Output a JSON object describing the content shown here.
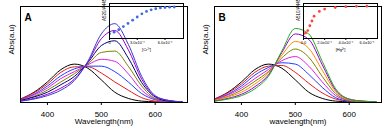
{
  "chart_data": [
    {
      "type": "line",
      "title": "A",
      "x_label": "Wavelength(nm)",
      "y_label": "Abs(a.u)",
      "x": [
        350,
        375,
        400,
        425,
        450,
        475,
        500,
        525,
        550,
        575,
        600,
        625,
        650
      ],
      "xlim": [
        350,
        660
      ],
      "xticks": [
        400,
        500,
        600
      ],
      "ylim": [
        0,
        1.4
      ],
      "tick_labels": "x",
      "grid": false,
      "series": [
        {
          "color": "#000000",
          "values": [
            0.05,
            0.15,
            0.3,
            0.48,
            0.56,
            0.5,
            0.33,
            0.15,
            0.06,
            0.02,
            0.01,
            0.0,
            0.0
          ]
        },
        {
          "color": "#e41a1c",
          "values": [
            0.05,
            0.14,
            0.27,
            0.44,
            0.52,
            0.52,
            0.43,
            0.3,
            0.18,
            0.07,
            0.02,
            0.0,
            0.0
          ]
        },
        {
          "color": "#1f3fff",
          "values": [
            0.04,
            0.12,
            0.24,
            0.39,
            0.49,
            0.53,
            0.53,
            0.45,
            0.3,
            0.13,
            0.04,
            0.01,
            0.0
          ]
        },
        {
          "color": "#e020e0",
          "values": [
            0.04,
            0.11,
            0.21,
            0.35,
            0.45,
            0.55,
            0.63,
            0.6,
            0.42,
            0.18,
            0.05,
            0.01,
            0.0
          ]
        },
        {
          "color": "#808000",
          "values": [
            0.03,
            0.09,
            0.18,
            0.3,
            0.42,
            0.56,
            0.73,
            0.75,
            0.53,
            0.24,
            0.06,
            0.02,
            0.01
          ]
        },
        {
          "color": "#000080",
          "values": [
            0.03,
            0.08,
            0.15,
            0.26,
            0.38,
            0.58,
            0.83,
            0.9,
            0.65,
            0.29,
            0.08,
            0.02,
            0.01
          ]
        },
        {
          "color": "#9400d3",
          "values": [
            0.02,
            0.06,
            0.12,
            0.21,
            0.34,
            0.59,
            0.93,
            1.05,
            0.77,
            0.34,
            0.09,
            0.03,
            0.01
          ]
        },
        {
          "color": "#3a3acc",
          "values": [
            0.02,
            0.05,
            0.1,
            0.18,
            0.32,
            0.6,
            1.0,
            1.15,
            0.85,
            0.38,
            0.1,
            0.03,
            0.01
          ]
        }
      ]
    },
    {
      "type": "scatter",
      "x_label": "[Cr³⁺]",
      "y_label": "A520/A445",
      "x": [
        0,
        5e-05,
        0.0001,
        0.00015,
        0.0002,
        0.00025,
        0.0003,
        0.00035,
        0.0004,
        0.00045,
        0.0005,
        0.00055,
        0.0006,
        0.00065,
        0.0007
      ],
      "values": [
        0.3,
        0.4,
        0.55,
        0.75,
        0.95,
        1.15,
        1.35,
        1.55,
        1.7,
        1.8,
        1.87,
        1.92,
        1.95,
        1.97,
        1.98
      ],
      "color": "#4169e1",
      "marker": "circle",
      "xlim": [
        0,
        0.0008
      ],
      "xticks": [
        0,
        {
          "value": 0.0003,
          "label": "3.0x10⁻⁴"
        },
        {
          "value": 0.0006,
          "label": "6.0x10⁻⁴"
        }
      ],
      "ylim": [
        0,
        2.2
      ],
      "tick_labels": "x"
    },
    {
      "type": "line",
      "title": "B",
      "x_label": "wavelength(nm)",
      "y_label": "Abs(a.u)",
      "x": [
        350,
        375,
        400,
        425,
        450,
        475,
        500,
        525,
        550,
        575,
        600,
        625,
        650
      ],
      "xlim": [
        350,
        660
      ],
      "xticks": [
        400,
        500,
        600
      ],
      "ylim": [
        0,
        1.4
      ],
      "tick_labels": "x",
      "grid": false,
      "series": [
        {
          "color": "#000000",
          "values": [
            0.05,
            0.15,
            0.3,
            0.48,
            0.56,
            0.5,
            0.33,
            0.15,
            0.06,
            0.02,
            0.01,
            0.0,
            0.0
          ]
        },
        {
          "color": "#e41a1c",
          "values": [
            0.05,
            0.14,
            0.27,
            0.44,
            0.53,
            0.54,
            0.44,
            0.28,
            0.14,
            0.05,
            0.02,
            0.0,
            0.0
          ]
        },
        {
          "color": "#1f3fff",
          "values": [
            0.04,
            0.12,
            0.24,
            0.4,
            0.51,
            0.58,
            0.56,
            0.41,
            0.22,
            0.07,
            0.02,
            0.01,
            0.0
          ]
        },
        {
          "color": "#e020e0",
          "values": [
            0.04,
            0.11,
            0.21,
            0.35,
            0.48,
            0.61,
            0.67,
            0.53,
            0.3,
            0.1,
            0.03,
            0.01,
            0.0
          ]
        },
        {
          "color": "#808000",
          "values": [
            0.03,
            0.09,
            0.18,
            0.31,
            0.45,
            0.65,
            0.78,
            0.66,
            0.38,
            0.13,
            0.03,
            0.01,
            0.01
          ]
        },
        {
          "color": "#ff8c00",
          "values": [
            0.03,
            0.08,
            0.15,
            0.27,
            0.43,
            0.69,
            0.89,
            0.79,
            0.47,
            0.16,
            0.04,
            0.02,
            0.01
          ]
        },
        {
          "color": "#9400d3",
          "values": [
            0.02,
            0.06,
            0.12,
            0.23,
            0.4,
            0.73,
            1.0,
            0.92,
            0.55,
            0.18,
            0.05,
            0.02,
            0.01
          ]
        },
        {
          "color": "#22aa22",
          "values": [
            0.02,
            0.05,
            0.1,
            0.2,
            0.38,
            0.75,
            1.08,
            1.0,
            0.6,
            0.2,
            0.05,
            0.02,
            0.01
          ]
        }
      ]
    },
    {
      "type": "scatter",
      "x_label": "[Hg²⁺]",
      "y_label": "A510/A445",
      "x": [
        0,
        2e-05,
        4e-05,
        6e-05,
        8e-05,
        0.0001,
        0.00015,
        0.0002,
        0.0003,
        0.0004,
        0.0005,
        0.0006
      ],
      "values": [
        0.3,
        0.35,
        0.5,
        0.8,
        1.1,
        1.4,
        1.7,
        1.85,
        1.95,
        2.0,
        2.02,
        2.03
      ],
      "color": "#ff4040",
      "marker": "circle",
      "xlim": [
        0,
        0.0007
      ],
      "xticks": [
        {
          "value": 0,
          "label": "0.0"
        },
        {
          "value": 0.0002,
          "label": "2.0x10⁻⁴"
        },
        {
          "value": 0.0004,
          "label": "4.0x10⁻⁴"
        },
        {
          "value": 0.0006,
          "label": "6.0x10⁻⁴"
        }
      ],
      "ylim": [
        0,
        2.2
      ],
      "tick_labels": "x"
    }
  ]
}
